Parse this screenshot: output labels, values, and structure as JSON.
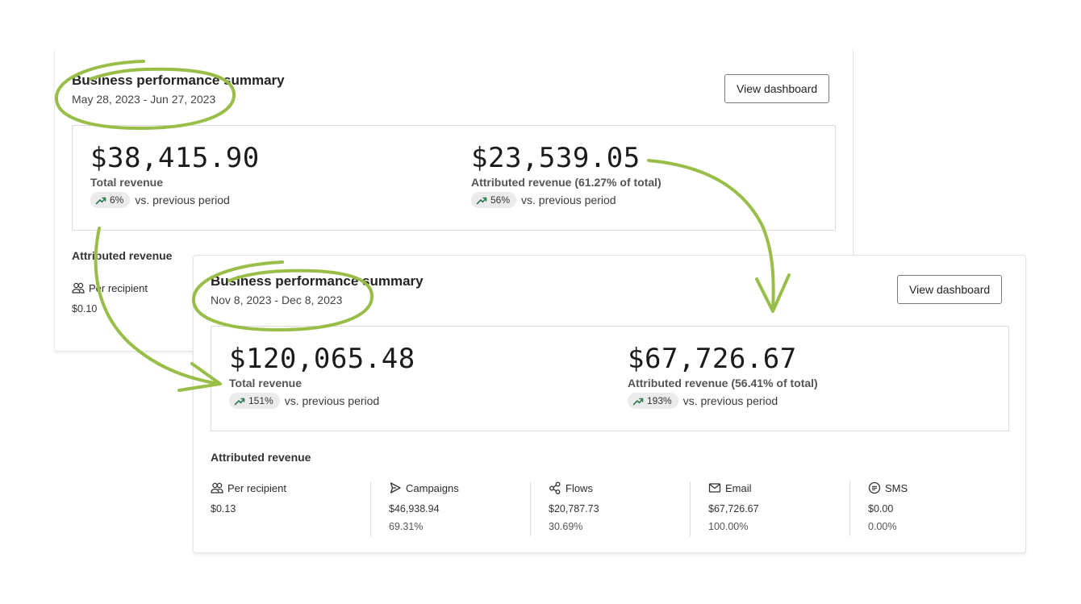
{
  "back_card": {
    "title": "Business performance summary",
    "date_range": "May 28, 2023 - Jun 27, 2023",
    "button": "View dashboard",
    "total_revenue": {
      "value": "$38,415.90",
      "label": "Total revenue",
      "change": "6%",
      "vs": "vs. previous period"
    },
    "attributed_revenue": {
      "value": "$23,539.05",
      "label": "Attributed revenue (61.27% of total)",
      "change": "56%",
      "vs": "vs. previous period"
    },
    "section_title": "Attributed revenue",
    "per_recipient": {
      "label": "Per recipient",
      "value": "$0.10"
    }
  },
  "front_card": {
    "title": "Business performance summary",
    "date_range": "Nov 8, 2023 - Dec 8, 2023",
    "button": "View dashboard",
    "total_revenue": {
      "value": "$120,065.48",
      "label": "Total revenue",
      "change": "151%",
      "vs": "vs. previous period"
    },
    "attributed_revenue": {
      "value": "$67,726.67",
      "label": "Attributed revenue (56.41% of total)",
      "change": "193%",
      "vs": "vs. previous period"
    },
    "section_title": "Attributed revenue",
    "stats": [
      {
        "label": "Per recipient",
        "icon": "people-icon",
        "value": "$0.13",
        "percent": ""
      },
      {
        "label": "Campaigns",
        "icon": "send-icon",
        "value": "$46,938.94",
        "percent": "69.31%"
      },
      {
        "label": "Flows",
        "icon": "flow-icon",
        "value": "$20,787.73",
        "percent": "30.69%"
      },
      {
        "label": "Email",
        "icon": "envelope-icon",
        "value": "$67,726.67",
        "percent": "100.00%"
      },
      {
        "label": "SMS",
        "icon": "sms-icon",
        "value": "$0.00",
        "percent": "0.00%"
      }
    ]
  },
  "colors": {
    "annotation_green": "#98be48",
    "trend_green": "#2e7d4f"
  }
}
